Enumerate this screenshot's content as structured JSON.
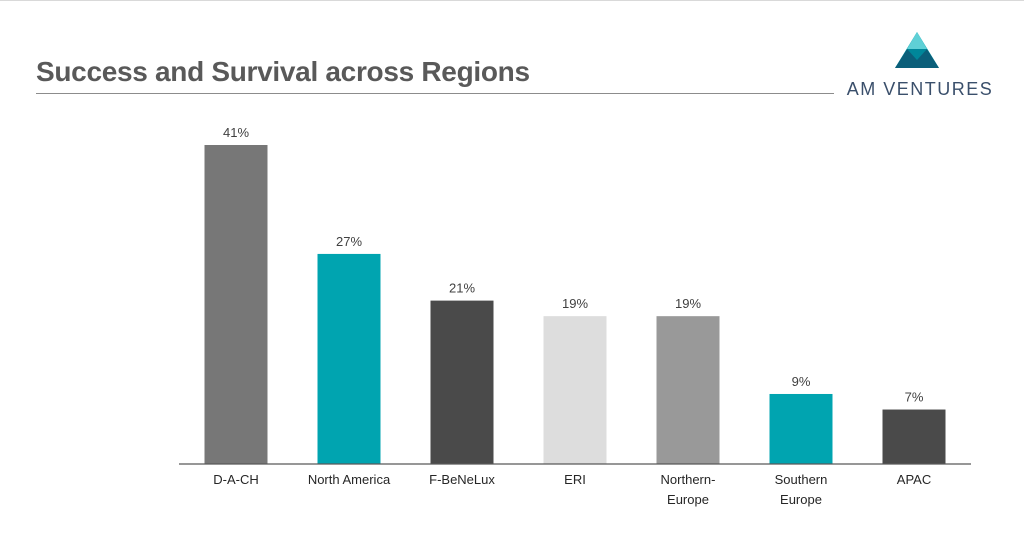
{
  "title": "Success and Survival across Regions",
  "logo": {
    "text": "AM VENTURES"
  },
  "colors": {
    "teal": "#00a4b0",
    "dark": "#4a4a4a",
    "mid": "#777777",
    "light": "#dddddd",
    "grey": "#999999"
  },
  "chart_data": {
    "type": "bar",
    "categories": [
      "D-A-CH",
      "North America",
      "F-BeNeLux",
      "ERI",
      "Northern-Europe",
      "Southern Europe",
      "APAC"
    ],
    "category_lines": [
      [
        "D-A-CH"
      ],
      [
        "North America"
      ],
      [
        "F-BeNeLux"
      ],
      [
        "ERI"
      ],
      [
        "Northern-",
        "Europe"
      ],
      [
        "Southern",
        "Europe"
      ],
      [
        "APAC"
      ]
    ],
    "values": [
      41,
      27,
      21,
      19,
      19,
      9,
      7
    ],
    "data_labels": [
      "41%",
      "27%",
      "21%",
      "19%",
      "19%",
      "9%",
      "7%"
    ],
    "bar_colors": [
      "#777777",
      "#00a4b0",
      "#4a4a4a",
      "#dddddd",
      "#999999",
      "#00a4b0",
      "#4a4a4a"
    ],
    "ylim": [
      0,
      41
    ],
    "grid": false,
    "legend": "none"
  }
}
